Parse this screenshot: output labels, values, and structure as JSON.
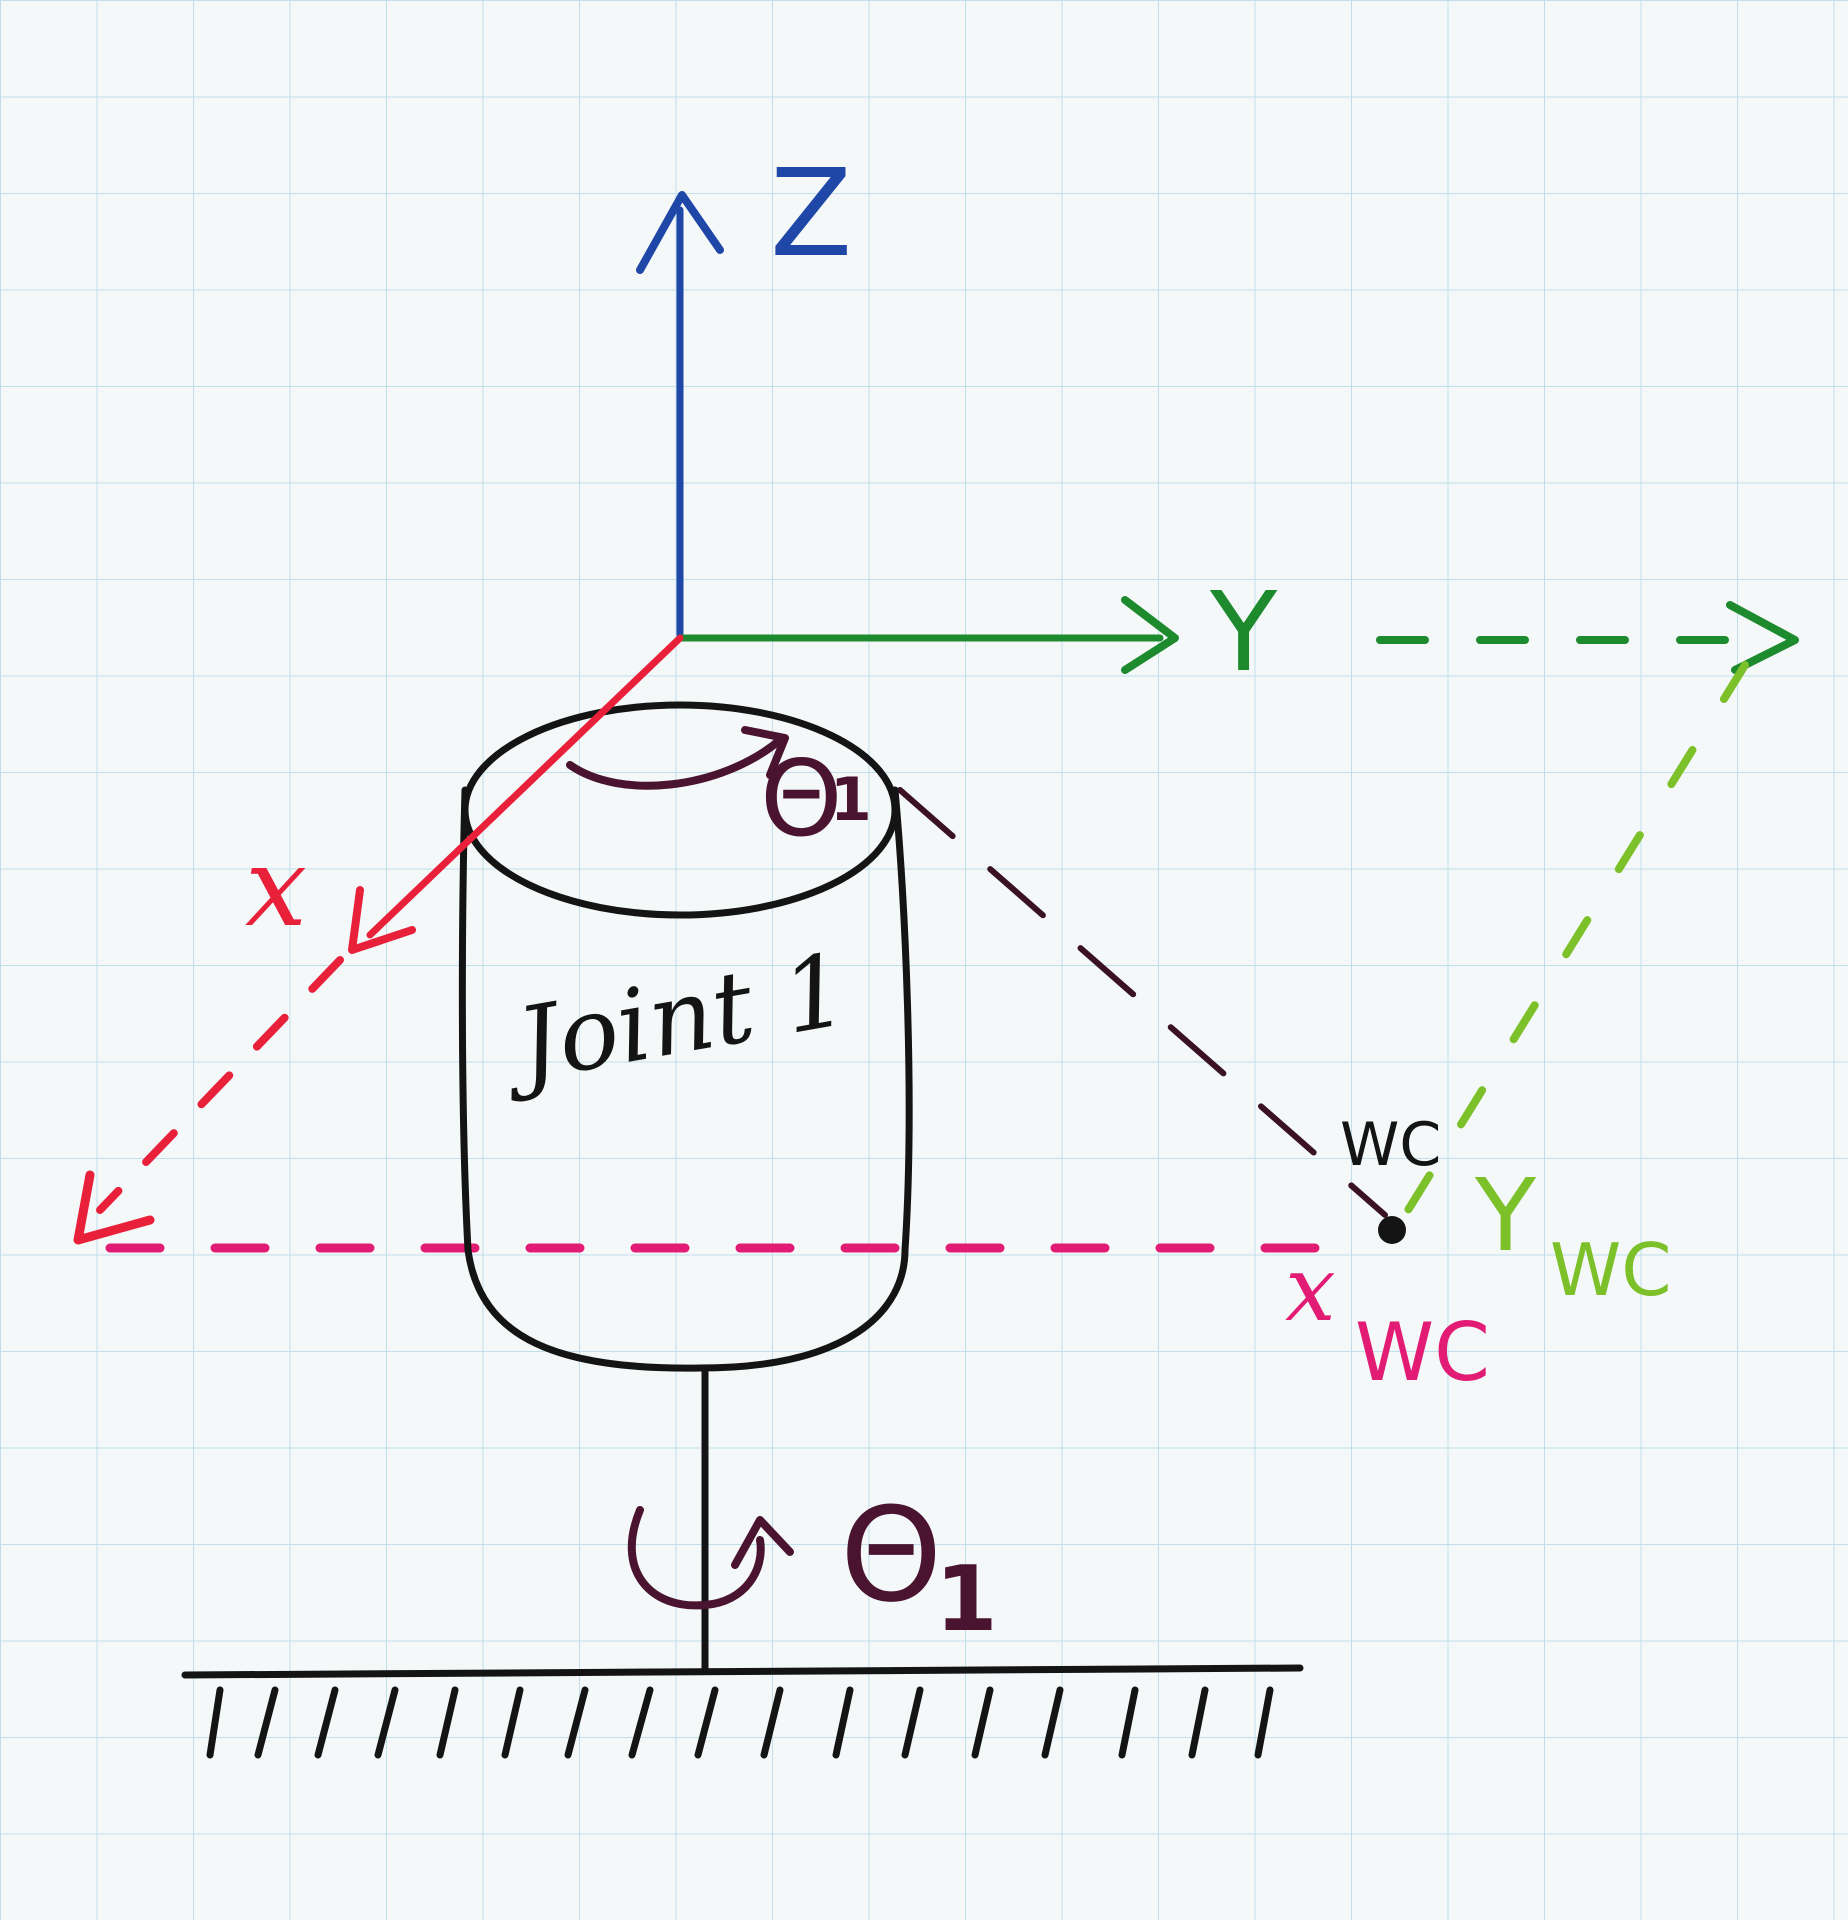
{
  "labels": {
    "z_axis": "Z",
    "y_axis": "Y",
    "x_axis": "x",
    "theta_top": "Θ",
    "theta_top_sub": "1",
    "joint": "Joint 1",
    "wc_point": "WC",
    "y_wc": "Y",
    "y_wc_sub": "WC",
    "x_wc": "x",
    "x_wc_sub": "WC",
    "theta_bottom": "Θ",
    "theta_bottom_sub": "1"
  },
  "colors": {
    "paper": "#f4f8f8",
    "grid": "#bfe0ea",
    "ink": "#141414",
    "z_axis": "#1f47a8",
    "y_axis": "#1e8a2e",
    "x_axis": "#e8203a",
    "theta": "#4a1430",
    "wc_x_projection": "#e21c74",
    "wc_y_projection": "#7cc02a",
    "wc_link": "#3a1224"
  }
}
